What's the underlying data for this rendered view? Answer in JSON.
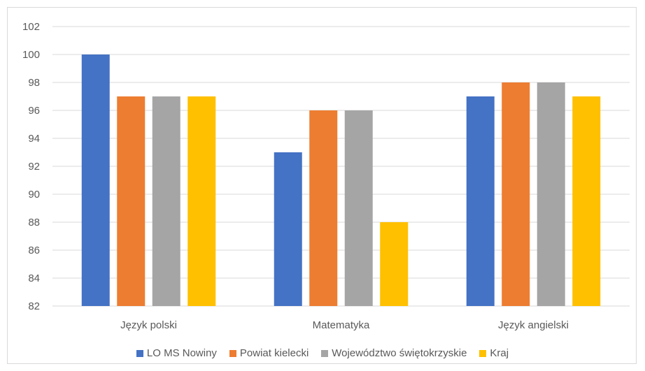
{
  "chart_data": {
    "type": "bar",
    "title": "",
    "xlabel": "",
    "ylabel": "",
    "categories": [
      "Język polski",
      "Matematyka",
      "Język angielski"
    ],
    "series": [
      {
        "name": "LO MS Nowiny",
        "color": "#4472C4",
        "values": [
          100,
          93,
          97
        ]
      },
      {
        "name": "Powiat kielecki",
        "color": "#ED7D31",
        "values": [
          97,
          96,
          98
        ]
      },
      {
        "name": "Województwo świętokrzyskie",
        "color": "#A5A5A5",
        "values": [
          97,
          96,
          98
        ]
      },
      {
        "name": "Kraj",
        "color": "#FFC000",
        "values": [
          97,
          88,
          97
        ]
      }
    ],
    "ylim": [
      82,
      102
    ],
    "yticks": [
      82,
      84,
      86,
      88,
      90,
      92,
      94,
      96,
      98,
      100,
      102
    ],
    "grid": true,
    "legend_position": "bottom"
  }
}
